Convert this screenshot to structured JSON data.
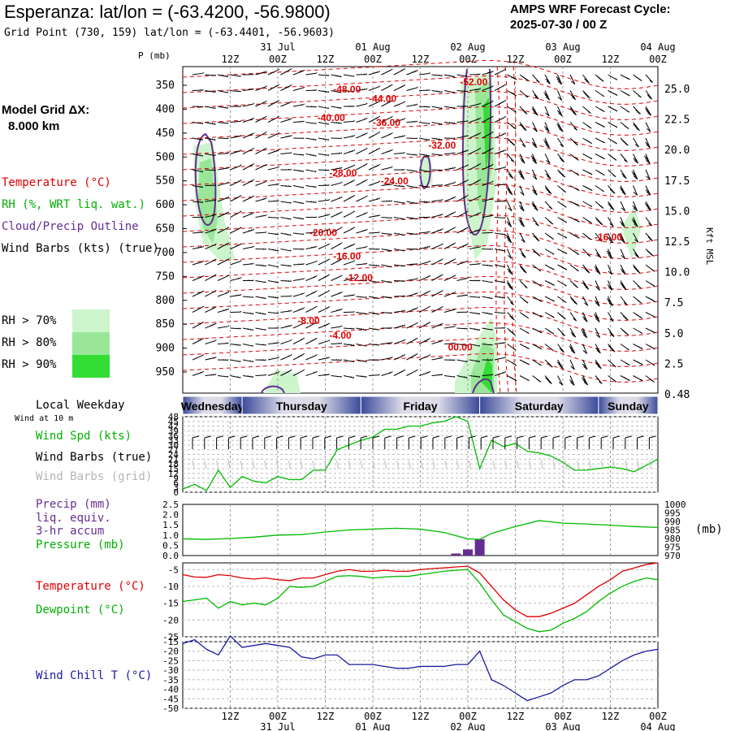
{
  "header": {
    "title": "Esperanza:  lat/lon = (-63.4200, -56.9800)",
    "subtitle": "Grid Point (730, 159) lat/lon = (-63.4401, -56.9603)",
    "cycle_line1": "AMPS WRF Forecast Cycle:",
    "cycle_line2": "2025-07-30 / 00  Z"
  },
  "left_panel": {
    "model_grid_label": "Model Grid ΔX:",
    "model_grid_value": "8.000 km",
    "temperature_label": "Temperature (°C)",
    "rh_label": "RH (%, WRT liq. wat.)",
    "cloud_label": "Cloud/Precip Outline",
    "wind_barbs_label": "Wind Barbs (kts) (true)",
    "rh70": "RH > 70%",
    "rh80": "RH > 80%",
    "rh90": "RH > 90%"
  },
  "colors": {
    "rh70": "#ccf5cc",
    "rh80": "#99e699",
    "rh90": "#33dd33",
    "temperature": "#e00000",
    "cloud": "#662d91",
    "wind_speed": "#00bb00",
    "pressure": "#00bb00",
    "dewpoint": "#00bb00",
    "wind_chill": "#1a1aa0",
    "precip": "#662d91"
  },
  "time_axis": {
    "top_date_labels": [
      "31 Jul",
      "01 Aug",
      "02 Aug",
      "03 Aug",
      "04 Aug"
    ],
    "hour_labels": [
      "12Z",
      "00Z",
      "12Z",
      "00Z",
      "12Z",
      "00Z",
      "12Z",
      "00Z",
      "12Z",
      "00Z"
    ],
    "bottom_date_labels": [
      "31 Jul",
      "01 Aug",
      "02 Aug",
      "03 Aug",
      "04 Aug"
    ],
    "pressure_axis_title": "P (mb)",
    "height_axis_title": "Kft MSL"
  },
  "weekday_bar": {
    "label": "Local Weekday",
    "wind_level_label": "Wind at 10 m",
    "days": [
      "Wednesday",
      "Thursday",
      "Friday",
      "Saturday",
      "Sunday"
    ]
  },
  "panel_labels": {
    "wind_speed": "Wind Spd (kts)",
    "wind_barbs_true": "Wind Barbs (true)",
    "wind_barbs_grid": "Wind Barbs (grid)",
    "precip_line1": "Precip (mm)",
    "precip_line2": "liq. equiv.",
    "precip_line3": "3-hr accum",
    "pressure": "Pressure (mb)",
    "pressure_unit": "(mb)",
    "temperature": "Temperature (°C)",
    "dewpoint": "Dewpoint (°C)",
    "wind_chill": "Wind Chill T (°C)"
  },
  "chart_data": [
    {
      "type": "contour",
      "name": "cross-section",
      "x_hours": [
        0,
        120
      ],
      "pressure_ticks": [
        350,
        400,
        450,
        500,
        550,
        600,
        650,
        700,
        750,
        800,
        850,
        900,
        950
      ],
      "height_ticks": [
        "25.0",
        "22.5",
        "20.0",
        "17.5",
        "15.0",
        "12.5",
        "10.0",
        "7.5",
        "5.0",
        "2.5",
        "0.48"
      ],
      "temperature_contour_labels": [
        {
          "text": "-48.00",
          "hour": 38,
          "p": 365
        },
        {
          "text": "-52.00",
          "hour": 70,
          "p": 350
        },
        {
          "text": "-44.00",
          "hour": 47,
          "p": 385
        },
        {
          "text": "-40.00",
          "hour": 34,
          "p": 425
        },
        {
          "text": "-36.00",
          "hour": 48,
          "p": 435
        },
        {
          "text": "-32.00",
          "hour": 62,
          "p": 483
        },
        {
          "text": "-28.00",
          "hour": 37,
          "p": 540
        },
        {
          "text": "-24.00",
          "hour": 50,
          "p": 557
        },
        {
          "text": "-20.00",
          "hour": 32,
          "p": 665
        },
        {
          "text": "-16.00",
          "hour": 38,
          "p": 715
        },
        {
          "text": "-16.00",
          "hour": 104,
          "p": 675
        },
        {
          "text": "-12.00",
          "hour": 41,
          "p": 760
        },
        {
          "text": "-8.00",
          "hour": 29,
          "p": 850
        },
        {
          "text": "-4.00",
          "hour": 37,
          "p": 880
        },
        {
          "text": "00.00",
          "hour": 67,
          "p": 905
        }
      ]
    },
    {
      "type": "line",
      "name": "Wind Spd (kts)",
      "x": [
        0,
        3,
        6,
        9,
        12,
        15,
        18,
        21,
        24,
        27,
        30,
        33,
        36,
        39,
        42,
        45,
        48,
        51,
        54,
        57,
        60,
        63,
        66,
        69,
        72,
        75,
        78,
        81,
        84,
        87,
        90,
        93,
        96,
        99,
        102,
        105,
        108,
        111,
        114,
        117,
        120
      ],
      "y": [
        2,
        5,
        1,
        14,
        3,
        10,
        7,
        6,
        10,
        8,
        8,
        14,
        14,
        27,
        30,
        33,
        35,
        40,
        40,
        42,
        42,
        44,
        45,
        48,
        45,
        15,
        33,
        29,
        31,
        26,
        25,
        23,
        19,
        14,
        14,
        15,
        16,
        15,
        13,
        17,
        21
      ],
      "y_ticks": [
        0,
        3,
        6,
        9,
        12,
        15,
        18,
        21,
        24,
        27,
        30,
        33,
        36,
        39,
        42,
        45,
        48
      ],
      "ylim": [
        0,
        48
      ]
    },
    {
      "type": "bar",
      "name": "Precip (mm)",
      "x": [
        69,
        72,
        75
      ],
      "values": [
        0.1,
        0.3,
        0.8
      ],
      "ylim": [
        0,
        2.5
      ],
      "y_ticks": [
        "0.0",
        "0.5",
        "1.0",
        "1.5",
        "2.0",
        "2.5"
      ]
    },
    {
      "type": "line",
      "name": "Pressure (mb)",
      "x": [
        0,
        6,
        12,
        18,
        24,
        30,
        36,
        42,
        48,
        54,
        60,
        66,
        72,
        75,
        78,
        84,
        90,
        96,
        102,
        108,
        114,
        120
      ],
      "y": [
        979.8,
        979.5,
        980.0,
        980.8,
        982.0,
        982.3,
        983.8,
        985.0,
        985.5,
        986.0,
        985.5,
        983.5,
        979.8,
        979.5,
        983.0,
        987.0,
        990.5,
        989.0,
        988.5,
        987.8,
        987.0,
        986.5
      ],
      "ylim": [
        970,
        1000
      ],
      "y_ticks": [
        970,
        975,
        980,
        985,
        990,
        995,
        1000
      ]
    },
    {
      "type": "line",
      "name": "Temperature (°C)",
      "x": [
        0,
        3,
        6,
        9,
        12,
        15,
        18,
        21,
        24,
        27,
        30,
        33,
        36,
        39,
        42,
        45,
        48,
        51,
        54,
        57,
        60,
        63,
        66,
        69,
        72,
        75,
        78,
        81,
        84,
        87,
        90,
        93,
        96,
        99,
        102,
        105,
        108,
        111,
        114,
        117,
        120
      ],
      "y": [
        -6.5,
        -7.2,
        -7.3,
        -6.5,
        -6.8,
        -7.5,
        -7.8,
        -7.5,
        -8.0,
        -8.3,
        -7.5,
        -7.5,
        -6.5,
        -5.5,
        -5.0,
        -5.5,
        -5.5,
        -5.2,
        -5.5,
        -5.5,
        -5.0,
        -4.7,
        -4.5,
        -4.2,
        -4.0,
        -6.0,
        -10.0,
        -14.0,
        -17.0,
        -19.0,
        -19.0,
        -18.0,
        -16.5,
        -15.0,
        -12.5,
        -10.0,
        -8.0,
        -5.5,
        -4.5,
        -3.5,
        -3.0
      ],
      "ylim": [
        -25,
        -3
      ],
      "y_ticks": [
        -25,
        -20,
        -15,
        -10,
        -5
      ]
    },
    {
      "type": "line",
      "name": "Dewpoint (°C)",
      "x": [
        0,
        3,
        6,
        9,
        12,
        15,
        18,
        21,
        24,
        27,
        30,
        33,
        36,
        39,
        42,
        45,
        48,
        51,
        54,
        57,
        60,
        63,
        66,
        69,
        72,
        75,
        78,
        81,
        84,
        87,
        90,
        93,
        96,
        99,
        102,
        105,
        108,
        111,
        114,
        117,
        120
      ],
      "y": [
        -14.5,
        -14.0,
        -13.5,
        -16.5,
        -14.5,
        -15.5,
        -15.0,
        -15.5,
        -13.5,
        -10.0,
        -10.3,
        -10.0,
        -8.5,
        -7.0,
        -6.8,
        -7.0,
        -7.5,
        -7.2,
        -7.0,
        -7.0,
        -6.5,
        -6.0,
        -5.5,
        -5.2,
        -5.0,
        -9.0,
        -14.0,
        -18.5,
        -20.5,
        -22.5,
        -23.5,
        -23.0,
        -21.0,
        -19.5,
        -17.5,
        -14.5,
        -12.0,
        -10.0,
        -8.5,
        -7.5,
        -8.0
      ],
      "ylim": [
        -25,
        -3
      ],
      "y_ticks": [
        -25,
        -20,
        -15,
        -10,
        -5
      ]
    },
    {
      "type": "line",
      "name": "Wind Chill T (°C)",
      "x": [
        0,
        3,
        6,
        9,
        12,
        15,
        18,
        21,
        24,
        27,
        30,
        33,
        36,
        39,
        42,
        45,
        48,
        51,
        54,
        57,
        60,
        63,
        66,
        69,
        72,
        75,
        78,
        81,
        84,
        87,
        90,
        93,
        96,
        99,
        102,
        105,
        108,
        111,
        114,
        117,
        120
      ],
      "y": [
        -16,
        -14,
        -19,
        -22,
        -12,
        -18,
        -17,
        -16,
        -17,
        -18,
        -23,
        -24,
        -22,
        -22,
        -27,
        -27,
        -27,
        -28,
        -29,
        -29,
        -28,
        -28,
        -28,
        -27,
        -27,
        -20,
        -35,
        -38,
        -42,
        -46,
        -44,
        -42,
        -38,
        -35,
        -35,
        -33,
        -29,
        -25,
        -22,
        -20,
        -19
      ],
      "ylim": [
        -50,
        -15
      ],
      "y_ticks": [
        -50,
        -45,
        -40,
        -35,
        -30,
        -25,
        -20,
        -15
      ]
    }
  ]
}
